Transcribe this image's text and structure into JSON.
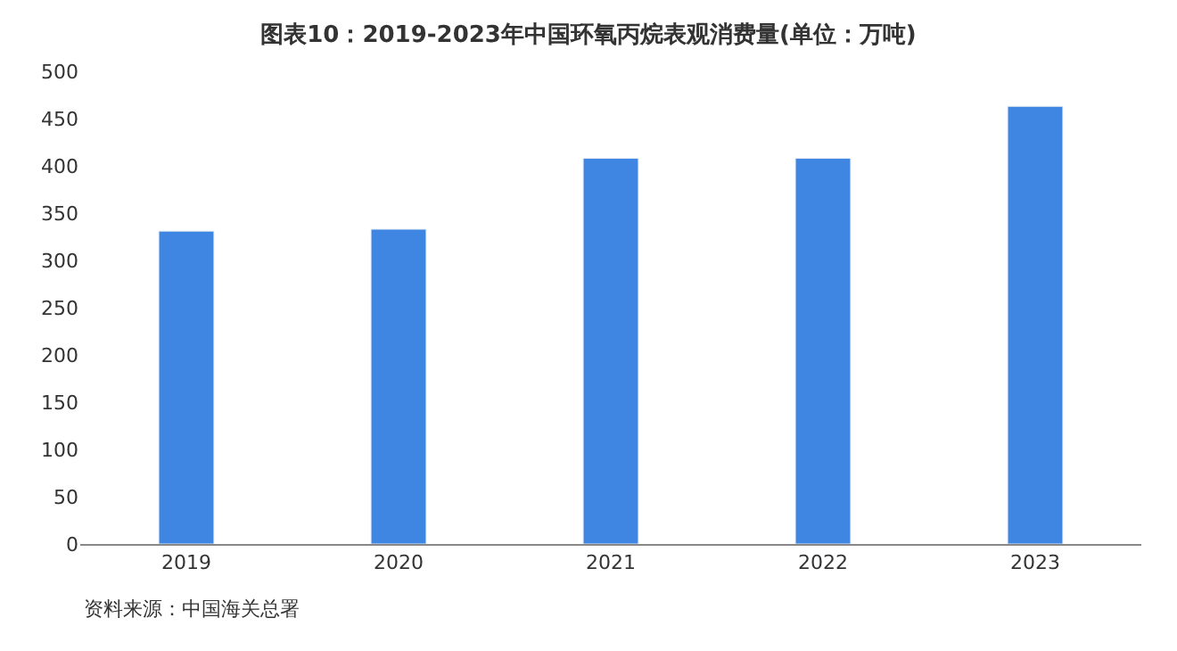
{
  "chart_data": {
    "type": "bar",
    "title": "图表10：2019-2023年中国环氧丙烷表观消费量(单位：万吨)",
    "categories": [
      "2019",
      "2020",
      "2021",
      "2022",
      "2023"
    ],
    "values": [
      331,
      333,
      408,
      408,
      463
    ],
    "color": "#3f86e3",
    "ylim": [
      0,
      500
    ],
    "yticks": [
      0,
      50,
      100,
      150,
      200,
      250,
      300,
      350,
      400,
      450,
      500
    ],
    "annotations": [
      "资料来源：中国海关总署"
    ]
  }
}
